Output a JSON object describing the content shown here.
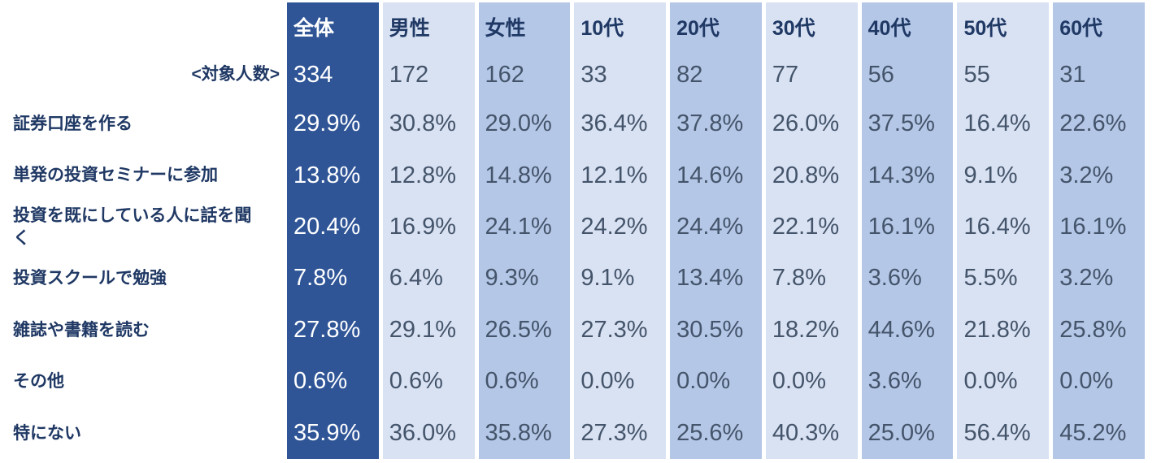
{
  "colors": {
    "dark_column_bg": "#2f5597",
    "light_column_bg": "#d9e2f3",
    "medium_column_bg": "#b4c7e7",
    "header_text": "#1f3864",
    "label_text": "#1f3864",
    "value_text": "#44546a",
    "dark_column_text": "#ffffff"
  },
  "table": {
    "corner_label": "<対象人数>",
    "columns": [
      {
        "label": "全体",
        "count": "334",
        "theme": "dark"
      },
      {
        "label": "男性",
        "count": "172",
        "theme": "light"
      },
      {
        "label": "女性",
        "count": "162",
        "theme": "medium"
      },
      {
        "label": "10代",
        "count": "33",
        "theme": "light"
      },
      {
        "label": "20代",
        "count": "82",
        "theme": "medium"
      },
      {
        "label": "30代",
        "count": "77",
        "theme": "light"
      },
      {
        "label": "40代",
        "count": "56",
        "theme": "medium"
      },
      {
        "label": "50代",
        "count": "55",
        "theme": "light"
      },
      {
        "label": "60代",
        "count": "31",
        "theme": "medium"
      }
    ],
    "rows": [
      {
        "label": "証券口座を作る",
        "values": [
          "29.9%",
          "30.8%",
          "29.0%",
          "36.4%",
          "37.8%",
          "26.0%",
          "37.5%",
          "16.4%",
          "22.6%"
        ]
      },
      {
        "label": "単発の投資セミナーに参加",
        "values": [
          "13.8%",
          "12.8%",
          "14.8%",
          "12.1%",
          "14.6%",
          "20.8%",
          "14.3%",
          "9.1%",
          "3.2%"
        ]
      },
      {
        "label": "投資を既にしている人に話を聞く",
        "values": [
          "20.4%",
          "16.9%",
          "24.1%",
          "24.2%",
          "24.4%",
          "22.1%",
          "16.1%",
          "16.4%",
          "16.1%"
        ]
      },
      {
        "label": "投資スクールで勉強",
        "values": [
          "7.8%",
          "6.4%",
          "9.3%",
          "9.1%",
          "13.4%",
          "7.8%",
          "3.6%",
          "5.5%",
          "3.2%"
        ]
      },
      {
        "label": "雑誌や書籍を読む",
        "values": [
          "27.8%",
          "29.1%",
          "26.5%",
          "27.3%",
          "30.5%",
          "18.2%",
          "44.6%",
          "21.8%",
          "25.8%"
        ]
      },
      {
        "label": "その他",
        "values": [
          "0.6%",
          "0.6%",
          "0.6%",
          "0.0%",
          "0.0%",
          "0.0%",
          "3.6%",
          "0.0%",
          "0.0%"
        ]
      },
      {
        "label": "特にない",
        "values": [
          "35.9%",
          "36.0%",
          "35.8%",
          "27.3%",
          "25.6%",
          "40.3%",
          "25.0%",
          "56.4%",
          "45.2%"
        ]
      }
    ]
  },
  "chart_data": {
    "type": "table",
    "title": "",
    "columns": [
      "全体",
      "男性",
      "女性",
      "10代",
      "20代",
      "30代",
      "40代",
      "50代",
      "60代"
    ],
    "sample_size_label": "<対象人数>",
    "sample_sizes": [
      334,
      172,
      162,
      33,
      82,
      77,
      56,
      55,
      31
    ],
    "rows": [
      {
        "label": "証券口座を作る",
        "values_pct": [
          29.9,
          30.8,
          29.0,
          36.4,
          37.8,
          26.0,
          37.5,
          16.4,
          22.6
        ]
      },
      {
        "label": "単発の投資セミナーに参加",
        "values_pct": [
          13.8,
          12.8,
          14.8,
          12.1,
          14.6,
          20.8,
          14.3,
          9.1,
          3.2
        ]
      },
      {
        "label": "投資を既にしている人に話を聞く",
        "values_pct": [
          20.4,
          16.9,
          24.1,
          24.2,
          24.4,
          22.1,
          16.1,
          16.4,
          16.1
        ]
      },
      {
        "label": "投資スクールで勉強",
        "values_pct": [
          7.8,
          6.4,
          9.3,
          9.1,
          13.4,
          7.8,
          3.6,
          5.5,
          3.2
        ]
      },
      {
        "label": "雑誌や書籍を読む",
        "values_pct": [
          27.8,
          29.1,
          26.5,
          27.3,
          30.5,
          18.2,
          44.6,
          21.8,
          25.8
        ]
      },
      {
        "label": "その他",
        "values_pct": [
          0.6,
          0.6,
          0.6,
          0.0,
          0.0,
          0.0,
          3.6,
          0.0,
          0.0
        ]
      },
      {
        "label": "特にない",
        "values_pct": [
          35.9,
          36.0,
          35.8,
          27.3,
          25.6,
          40.3,
          25.0,
          56.4,
          45.2
        ]
      }
    ]
  }
}
